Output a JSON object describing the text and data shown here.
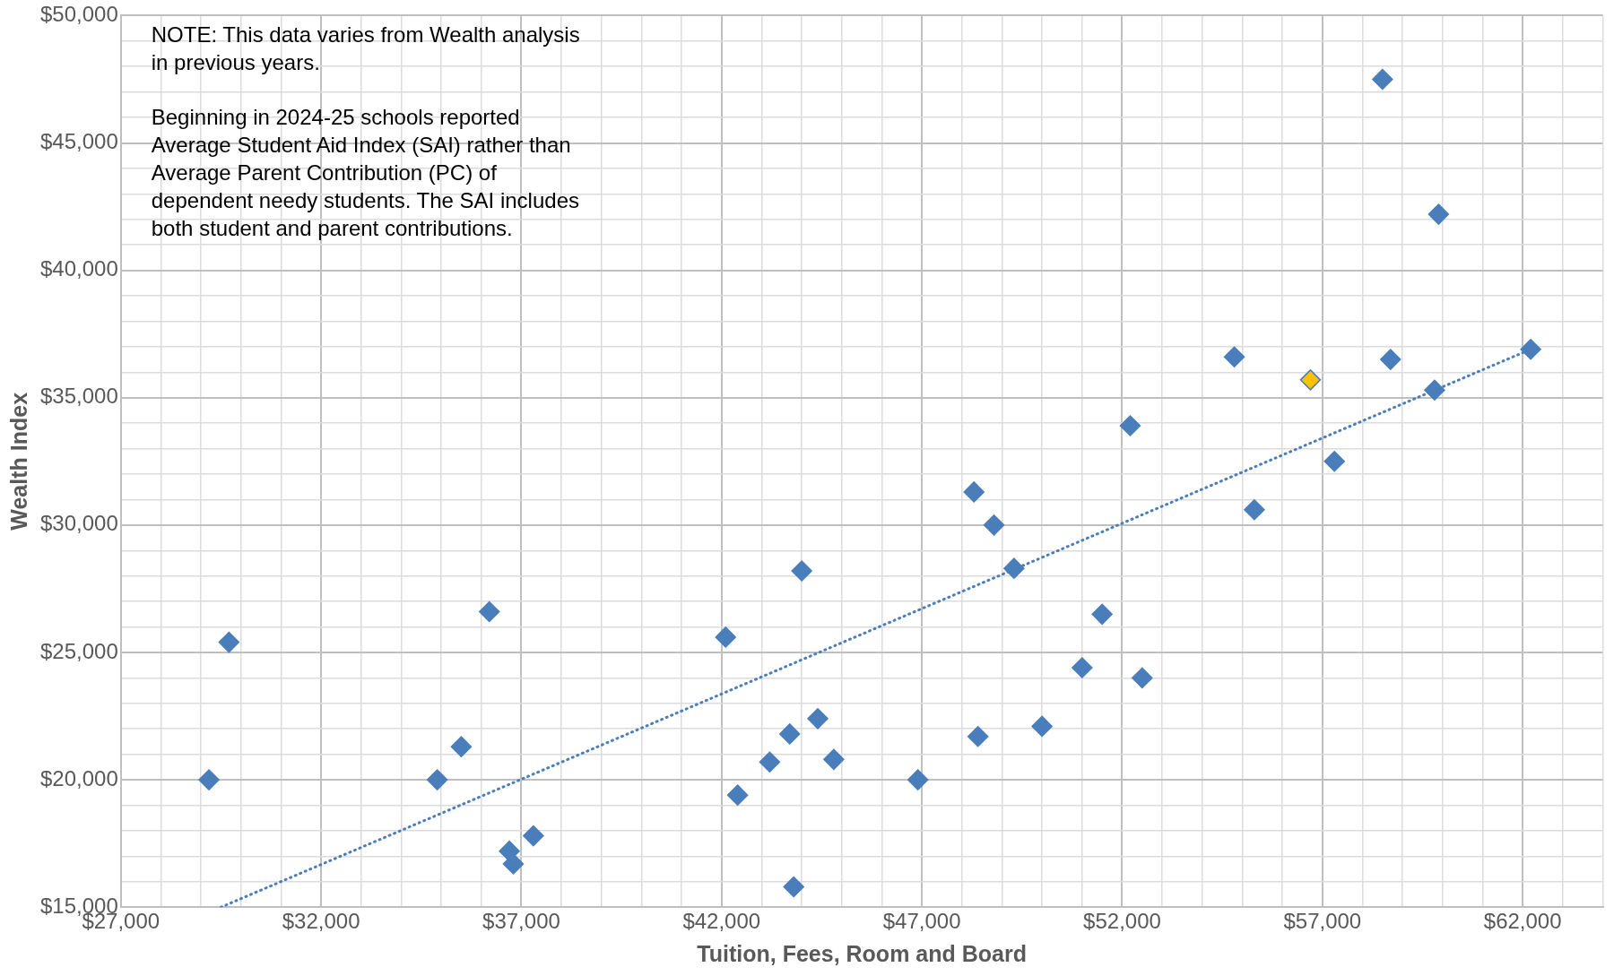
{
  "chart_data": {
    "type": "scatter",
    "xlabel": "Tuition, Fees, Room and Board",
    "ylabel": "Wealth Index",
    "annotations": [
      "NOTE: This data varies from Wealth analysis in previous years.",
      "Beginning in 2024-25 schools reported Average Student Aid Index (SAI) rather than Average Parent Contribution (PC) of dependent needy students.  The SAI includes both student and parent contributions."
    ],
    "xlim": [
      27000,
      64000
    ],
    "ylim": [
      15000,
      50000
    ],
    "xticks": [
      {
        "value": 27000,
        "label": "$27,000"
      },
      {
        "value": 28000,
        "label": null
      },
      {
        "value": 29000,
        "label": null
      },
      {
        "value": 30000,
        "label": null
      },
      {
        "value": 31000,
        "label": null
      },
      {
        "value": 32000,
        "label": "$32,000"
      },
      {
        "value": 33000,
        "label": null
      },
      {
        "value": 34000,
        "label": null
      },
      {
        "value": 35000,
        "label": null
      },
      {
        "value": 36000,
        "label": null
      },
      {
        "value": 37000,
        "label": "$37,000"
      },
      {
        "value": 38000,
        "label": null
      },
      {
        "value": 39000,
        "label": null
      },
      {
        "value": 40000,
        "label": null
      },
      {
        "value": 41000,
        "label": null
      },
      {
        "value": 42000,
        "label": "$42,000"
      },
      {
        "value": 43000,
        "label": null
      },
      {
        "value": 44000,
        "label": null
      },
      {
        "value": 45000,
        "label": null
      },
      {
        "value": 46000,
        "label": null
      },
      {
        "value": 47000,
        "label": "$47,000"
      },
      {
        "value": 48000,
        "label": null
      },
      {
        "value": 49000,
        "label": null
      },
      {
        "value": 50000,
        "label": null
      },
      {
        "value": 51000,
        "label": null
      },
      {
        "value": 52000,
        "label": "$52,000"
      },
      {
        "value": 53000,
        "label": null
      },
      {
        "value": 54000,
        "label": null
      },
      {
        "value": 55000,
        "label": null
      },
      {
        "value": 56000,
        "label": null
      },
      {
        "value": 57000,
        "label": "$57,000"
      },
      {
        "value": 58000,
        "label": null
      },
      {
        "value": 59000,
        "label": null
      },
      {
        "value": 60000,
        "label": null
      },
      {
        "value": 61000,
        "label": null
      },
      {
        "value": 62000,
        "label": "$62,000"
      },
      {
        "value": 63000,
        "label": null
      },
      {
        "value": 64000,
        "label": null
      }
    ],
    "yticks": [
      {
        "value": 15000,
        "label": "$15,000"
      },
      {
        "value": 16000,
        "label": null
      },
      {
        "value": 17000,
        "label": null
      },
      {
        "value": 18000,
        "label": null
      },
      {
        "value": 19000,
        "label": null
      },
      {
        "value": 20000,
        "label": "$20,000"
      },
      {
        "value": 21000,
        "label": null
      },
      {
        "value": 22000,
        "label": null
      },
      {
        "value": 23000,
        "label": null
      },
      {
        "value": 24000,
        "label": null
      },
      {
        "value": 25000,
        "label": "$25,000"
      },
      {
        "value": 26000,
        "label": null
      },
      {
        "value": 27000,
        "label": null
      },
      {
        "value": 28000,
        "label": null
      },
      {
        "value": 29000,
        "label": null
      },
      {
        "value": 30000,
        "label": "$30,000"
      },
      {
        "value": 31000,
        "label": null
      },
      {
        "value": 32000,
        "label": null
      },
      {
        "value": 33000,
        "label": null
      },
      {
        "value": 34000,
        "label": null
      },
      {
        "value": 35000,
        "label": "$35,000"
      },
      {
        "value": 36000,
        "label": null
      },
      {
        "value": 37000,
        "label": null
      },
      {
        "value": 38000,
        "label": null
      },
      {
        "value": 39000,
        "label": null
      },
      {
        "value": 40000,
        "label": "$40,000"
      },
      {
        "value": 41000,
        "label": null
      },
      {
        "value": 42000,
        "label": null
      },
      {
        "value": 43000,
        "label": null
      },
      {
        "value": 44000,
        "label": null
      },
      {
        "value": 45000,
        "label": "$45,000"
      },
      {
        "value": 46000,
        "label": null
      },
      {
        "value": 47000,
        "label": null
      },
      {
        "value": 48000,
        "label": null
      },
      {
        "value": 49000,
        "label": null
      },
      {
        "value": 50000,
        "label": "$50,000"
      }
    ],
    "grid": true,
    "marker": "diamond",
    "series": [
      {
        "color": "#4a7ebb",
        "x": [
          29200,
          29700,
          34900,
          35500,
          36200,
          36700,
          36800,
          37300,
          42100,
          42400,
          43200,
          43700,
          43800,
          44000,
          44400,
          44800,
          46900,
          48300,
          48400,
          48800,
          49300,
          50000,
          51000,
          51500,
          52200,
          52500,
          54800,
          55300,
          56700,
          57300,
          58500,
          58700,
          59800,
          59900,
          62200
        ],
        "values": [
          20000,
          25400,
          20000,
          21300,
          26600,
          17200,
          16700,
          17800,
          25600,
          19400,
          20700,
          21800,
          15800,
          28200,
          22400,
          20800,
          20000,
          31300,
          21700,
          30000,
          28300,
          22100,
          24400,
          26500,
          33900,
          24000,
          36600,
          30600,
          35700,
          32500,
          47500,
          36500,
          35300,
          42200,
          36900
        ],
        "colors": [
          "#4a7ebb",
          "#4a7ebb",
          "#4a7ebb",
          "#4a7ebb",
          "#4a7ebb",
          "#4a7ebb",
          "#4a7ebb",
          "#4a7ebb",
          "#4a7ebb",
          "#4a7ebb",
          "#4a7ebb",
          "#4a7ebb",
          "#4a7ebb",
          "#4a7ebb",
          "#4a7ebb",
          "#4a7ebb",
          "#4a7ebb",
          "#4a7ebb",
          "#4a7ebb",
          "#4a7ebb",
          "#4a7ebb",
          "#4a7ebb",
          "#4a7ebb",
          "#4a7ebb",
          "#4a7ebb",
          "#4a7ebb",
          "#4a7ebb",
          "#4a7ebb",
          "#ffc000",
          "#4a7ebb",
          "#4a7ebb",
          "#4a7ebb",
          "#4a7ebb",
          "#4a7ebb",
          "#4a7ebb"
        ]
      },
      {
        "type": "line",
        "color": "#4a7ebb",
        "x": [
          29500,
          62200
        ],
        "values": [
          15000,
          36900
        ],
        "marker": "none",
        "line_style": "dotted"
      }
    ]
  }
}
